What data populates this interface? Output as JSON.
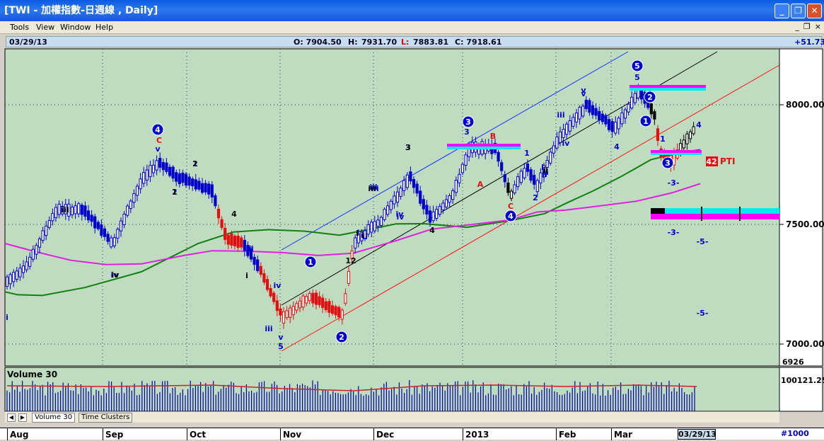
{
  "window": {
    "title": "[TWI - 加權指數-日週線 , Daily]",
    "min_icon": "minimize-icon",
    "max_icon": "restore-icon",
    "close_icon": "close-icon",
    "min_glyph": "_",
    "max_glyph": "❐",
    "close_glyph": "✕"
  },
  "menu": {
    "items": [
      "Tools",
      "View",
      "Window",
      "Help"
    ],
    "mdi_min": "_",
    "mdi_restore": "❐",
    "mdi_close": "×"
  },
  "info": {
    "date": "03/29/13",
    "open": "O: 7904.50",
    "high_label": "H:",
    "high": "7931.70",
    "low_label": "L:",
    "low": "7883.81",
    "close": "C: 7918.61",
    "change": "+51.73"
  },
  "price_axis": {
    "labels": [
      "8000.00",
      "7500.00",
      "7000.00"
    ],
    "bottom_value": "6926",
    "min": 6926,
    "max": 8240
  },
  "volume": {
    "label": "Volume 30",
    "value_label": "100121.25"
  },
  "tabs": [
    "Volume 30",
    "Time Clusters"
  ],
  "time_axis": {
    "months": [
      "Aug",
      "Sep",
      "Oct",
      "Nov",
      "Dec",
      "2013",
      "Feb",
      "Mar"
    ],
    "cursor_date": "03/29/13",
    "count": "#1000"
  },
  "colors": {
    "background": "#c0dcc0",
    "up_candle": "#0000cc",
    "down_candle": "#e01010",
    "ma_short": "#108010",
    "ma_long": "#e020e0",
    "channel_blue": "#1030ff",
    "channel_black": "#000000",
    "channel_red": "#ff1010",
    "target_magenta": "#ff00ff",
    "target_cyan": "#00e8f0",
    "volume_bar": "#0000aa",
    "volume_ma": "#cc2222"
  },
  "wave_labels": {
    "circled": [
      "4",
      "1",
      "2",
      "3",
      "4",
      "5",
      "2",
      "1",
      "3"
    ],
    "blue": [
      "i",
      "iii",
      "iv",
      "ii",
      "iii",
      "iv",
      "v",
      "i",
      "ii",
      "iii",
      "iv",
      "5",
      "3",
      "v",
      "iii",
      "iv",
      "v",
      "i",
      "ii",
      "1",
      "2",
      "3",
      "v",
      "iii",
      "iv",
      "4",
      "5",
      "1",
      "ii",
      "2",
      "1",
      "3",
      "-3-",
      "-3-",
      "-5-",
      "-5-",
      "4"
    ],
    "red": [
      "C",
      "B",
      "A",
      "C"
    ],
    "black": [
      "1",
      "2",
      "3",
      "4",
      "i",
      "iii",
      "iv",
      "iii",
      "i",
      "12",
      "i",
      "ii",
      "4"
    ]
  },
  "pti": {
    "value": "42",
    "label": "PTI"
  }
}
